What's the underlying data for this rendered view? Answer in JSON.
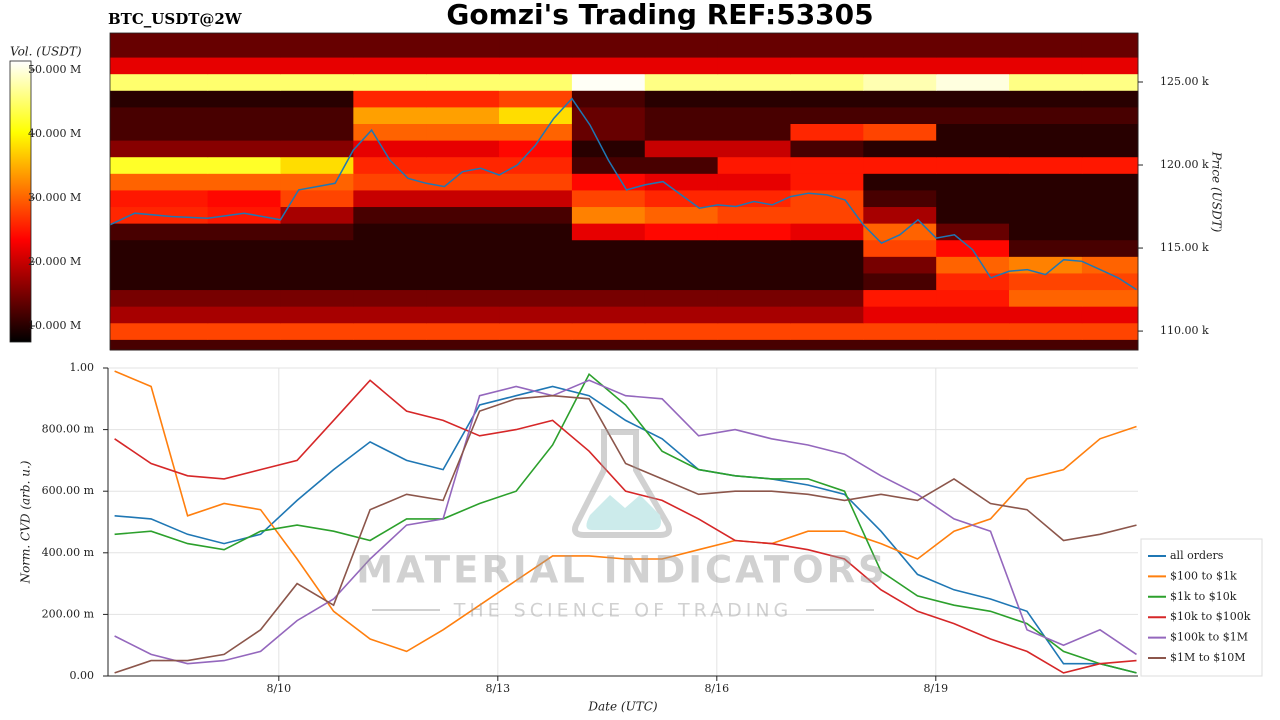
{
  "title": "Gomzi's Trading REF:53305",
  "symbol": "BTC_USDT@2W",
  "watermark": {
    "brand": "MATERIAL INDICATORS",
    "tagline": "THE SCIENCE OF TRADING"
  },
  "chart_data": [
    {
      "type": "heatmap",
      "colorbar_label": "Vol. (USDT)",
      "ylabel": "Price (USDT)",
      "colormap": "hot",
      "grid": false,
      "xlim": [
        7.66,
        21.77
      ],
      "ylim": [
        108.86,
        127.95
      ],
      "yticks": [
        {
          "value": 110,
          "label": "110.00 k"
        },
        {
          "value": 115,
          "label": "115.00 k"
        },
        {
          "value": 120,
          "label": "120.00 k"
        },
        {
          "value": 125,
          "label": "125.00 k"
        }
      ],
      "clim": [
        7.5,
        51.4
      ],
      "cticks": [
        {
          "value": 10,
          "label": "10.000 M"
        },
        {
          "value": 20,
          "label": "20.000 M"
        },
        {
          "value": 30,
          "label": "30.000 M"
        },
        {
          "value": 40,
          "label": "40.000 M"
        },
        {
          "value": 50,
          "label": "50.000 M"
        }
      ],
      "x_bins": [
        7.66,
        9,
        10,
        11,
        12,
        13,
        14,
        15,
        16,
        17,
        18,
        19,
        20,
        21,
        21.77
      ],
      "y_bins": [
        108.86,
        109.5,
        110.5,
        111.5,
        112.5,
        113.5,
        114.5,
        115.5,
        116.5,
        117.5,
        118.5,
        119.5,
        120.5,
        121.5,
        122.5,
        123.5,
        124.5,
        125.5,
        126.5,
        127.95
      ],
      "z": [
        [
          12,
          12,
          12,
          12,
          12,
          12,
          12,
          12,
          12,
          12,
          12,
          12,
          12,
          12
        ],
        [
          28,
          28,
          28,
          28,
          28,
          28,
          28,
          28,
          28,
          28,
          28,
          28,
          28,
          28
        ],
        [
          18,
          18,
          18,
          18,
          18,
          18,
          18,
          18,
          18,
          18,
          22,
          22,
          22,
          22
        ],
        [
          15,
          15,
          15,
          15,
          15,
          15,
          15,
          15,
          15,
          15,
          25,
          25,
          30,
          30
        ],
        [
          10,
          10,
          10,
          10,
          10,
          10,
          10,
          10,
          10,
          10,
          12,
          26,
          28,
          28
        ],
        [
          10,
          10,
          10,
          10,
          10,
          10,
          10,
          10,
          10,
          10,
          15,
          30,
          32,
          30
        ],
        [
          10,
          10,
          10,
          10,
          10,
          10,
          10,
          10,
          10,
          10,
          28,
          24,
          12,
          12
        ],
        [
          12,
          12,
          12,
          10,
          10,
          10,
          22,
          24,
          24,
          22,
          30,
          14,
          10,
          10
        ],
        [
          26,
          25,
          18,
          12,
          12,
          12,
          32,
          30,
          28,
          28,
          18,
          10,
          10,
          10
        ],
        [
          25,
          24,
          28,
          20,
          20,
          20,
          28,
          26,
          26,
          28,
          12,
          10,
          10,
          10
        ],
        [
          30,
          30,
          30,
          28,
          28,
          28,
          24,
          22,
          22,
          25,
          10,
          10,
          10,
          10
        ],
        [
          42,
          42,
          38,
          26,
          26,
          26,
          12,
          12,
          25,
          25,
          25,
          25,
          25,
          25
        ],
        [
          16,
          16,
          16,
          22,
          22,
          24,
          10,
          20,
          20,
          12,
          10,
          10,
          10,
          10
        ],
        [
          12,
          12,
          12,
          30,
          30,
          30,
          14,
          12,
          12,
          26,
          28,
          10,
          10,
          10
        ],
        [
          12,
          12,
          12,
          34,
          34,
          38,
          14,
          12,
          12,
          12,
          12,
          12,
          12,
          12
        ],
        [
          10,
          10,
          10,
          26,
          26,
          28,
          12,
          10,
          10,
          10,
          10,
          10,
          10,
          10
        ],
        [
          45,
          45,
          45,
          45,
          45,
          45,
          51,
          46,
          46,
          46,
          48,
          50,
          46,
          46
        ],
        [
          22,
          22,
          22,
          22,
          22,
          22,
          22,
          22,
          22,
          22,
          22,
          22,
          22,
          22
        ],
        [
          14,
          14,
          14,
          14,
          14,
          14,
          14,
          14,
          14,
          14,
          14,
          14,
          14,
          14
        ]
      ],
      "line": {
        "color": "#1f77b4",
        "x": [
          7.66,
          8,
          8.5,
          9,
          9.5,
          10,
          10.25,
          10.5,
          10.75,
          11,
          11.25,
          11.5,
          11.75,
          12,
          12.25,
          12.5,
          12.75,
          13,
          13.25,
          13.5,
          13.75,
          14,
          14.25,
          14.5,
          14.75,
          15,
          15.25,
          15.5,
          15.75,
          16,
          16.25,
          16.5,
          16.75,
          17,
          17.25,
          17.5,
          17.75,
          18,
          18.25,
          18.5,
          18.75,
          19,
          19.25,
          19.5,
          19.75,
          20,
          20.25,
          20.5,
          20.75,
          21,
          21.25,
          21.5,
          21.75
        ],
        "values": [
          116.4,
          117.1,
          116.9,
          116.8,
          117.1,
          116.7,
          118.5,
          118.7,
          118.9,
          120.9,
          122.1,
          120.3,
          119.2,
          118.9,
          118.7,
          119.6,
          119.8,
          119.4,
          120.0,
          121.2,
          122.8,
          124.0,
          122.4,
          120.3,
          118.5,
          118.8,
          119.0,
          118.2,
          117.4,
          117.6,
          117.5,
          117.8,
          117.6,
          118.1,
          118.3,
          118.2,
          117.9,
          116.4,
          115.3,
          115.8,
          116.7,
          115.6,
          115.8,
          114.9,
          113.2,
          113.6,
          113.7,
          113.4,
          114.3,
          114.2,
          113.7,
          113.2,
          112.5
        ]
      }
    },
    {
      "type": "line",
      "xlabel": "Date (UTC)",
      "ylabel": "Norm. CVD (arb. u.)",
      "grid": true,
      "legend": "right",
      "xlim": [
        7.66,
        21.77
      ],
      "ylim": [
        0,
        1
      ],
      "xticks": [
        {
          "value": 10,
          "label": "8/10"
        },
        {
          "value": 13,
          "label": "8/13"
        },
        {
          "value": 16,
          "label": "8/16"
        },
        {
          "value": 19,
          "label": "8/19"
        }
      ],
      "yticks": [
        {
          "value": 0,
          "label": "0.00"
        },
        {
          "value": 0.2,
          "label": "200.00 m"
        },
        {
          "value": 0.4,
          "label": "400.00 m"
        },
        {
          "value": 0.6,
          "label": "600.00 m"
        },
        {
          "value": 0.8,
          "label": "800.00 m"
        },
        {
          "value": 1,
          "label": "1.00"
        }
      ],
      "x": [
        7.75,
        8.25,
        8.75,
        9.25,
        9.75,
        10.25,
        10.75,
        11.25,
        11.75,
        12.25,
        12.75,
        13.25,
        13.75,
        14.25,
        14.75,
        15.25,
        15.75,
        16.25,
        16.75,
        17.25,
        17.75,
        18.25,
        18.75,
        19.25,
        19.75,
        20.25,
        20.75,
        21.25,
        21.75
      ],
      "series": [
        {
          "name": "all orders",
          "color": "#1f77b4",
          "values": [
            0.52,
            0.51,
            0.46,
            0.43,
            0.46,
            0.57,
            0.67,
            0.76,
            0.7,
            0.67,
            0.88,
            0.91,
            0.94,
            0.91,
            0.83,
            0.77,
            0.67,
            0.65,
            0.64,
            0.62,
            0.59,
            0.47,
            0.33,
            0.28,
            0.25,
            0.21,
            0.04,
            0.04,
            0.01
          ]
        },
        {
          "name": "$100 to $1k",
          "color": "#ff7f0e",
          "values": [
            0.99,
            0.94,
            0.52,
            0.56,
            0.54,
            0.38,
            0.21,
            0.12,
            0.08,
            0.15,
            0.23,
            0.31,
            0.39,
            0.39,
            0.38,
            0.38,
            0.41,
            0.44,
            0.43,
            0.47,
            0.47,
            0.43,
            0.38,
            0.47,
            0.51,
            0.64,
            0.67,
            0.77,
            0.81
          ]
        },
        {
          "name": "$1k to $10k",
          "color": "#2ca02c",
          "values": [
            0.46,
            0.47,
            0.43,
            0.41,
            0.47,
            0.49,
            0.47,
            0.44,
            0.51,
            0.51,
            0.56,
            0.6,
            0.75,
            0.98,
            0.88,
            0.73,
            0.67,
            0.65,
            0.64,
            0.64,
            0.6,
            0.34,
            0.26,
            0.23,
            0.21,
            0.17,
            0.08,
            0.04,
            0.01
          ]
        },
        {
          "name": "$10k to $100k",
          "color": "#d62728",
          "values": [
            0.77,
            0.69,
            0.65,
            0.64,
            0.67,
            0.7,
            0.83,
            0.96,
            0.86,
            0.83,
            0.78,
            0.8,
            0.83,
            0.73,
            0.6,
            0.57,
            0.51,
            0.44,
            0.43,
            0.41,
            0.38,
            0.28,
            0.21,
            0.17,
            0.12,
            0.08,
            0.01,
            0.04,
            0.05
          ]
        },
        {
          "name": "$100k to $1M",
          "color": "#9467bd",
          "values": [
            0.13,
            0.07,
            0.04,
            0.05,
            0.08,
            0.18,
            0.25,
            0.38,
            0.49,
            0.51,
            0.91,
            0.94,
            0.91,
            0.96,
            0.91,
            0.9,
            0.78,
            0.8,
            0.77,
            0.75,
            0.72,
            0.65,
            0.59,
            0.51,
            0.47,
            0.15,
            0.1,
            0.15,
            0.07
          ]
        },
        {
          "name": "$1M to $10M",
          "color": "#8c564b",
          "values": [
            0.01,
            0.05,
            0.05,
            0.07,
            0.15,
            0.3,
            0.23,
            0.54,
            0.59,
            0.57,
            0.86,
            0.9,
            0.91,
            0.9,
            0.69,
            0.64,
            0.59,
            0.6,
            0.6,
            0.59,
            0.57,
            0.59,
            0.57,
            0.64,
            0.56,
            0.54,
            0.44,
            0.46,
            0.49
          ]
        }
      ]
    }
  ]
}
